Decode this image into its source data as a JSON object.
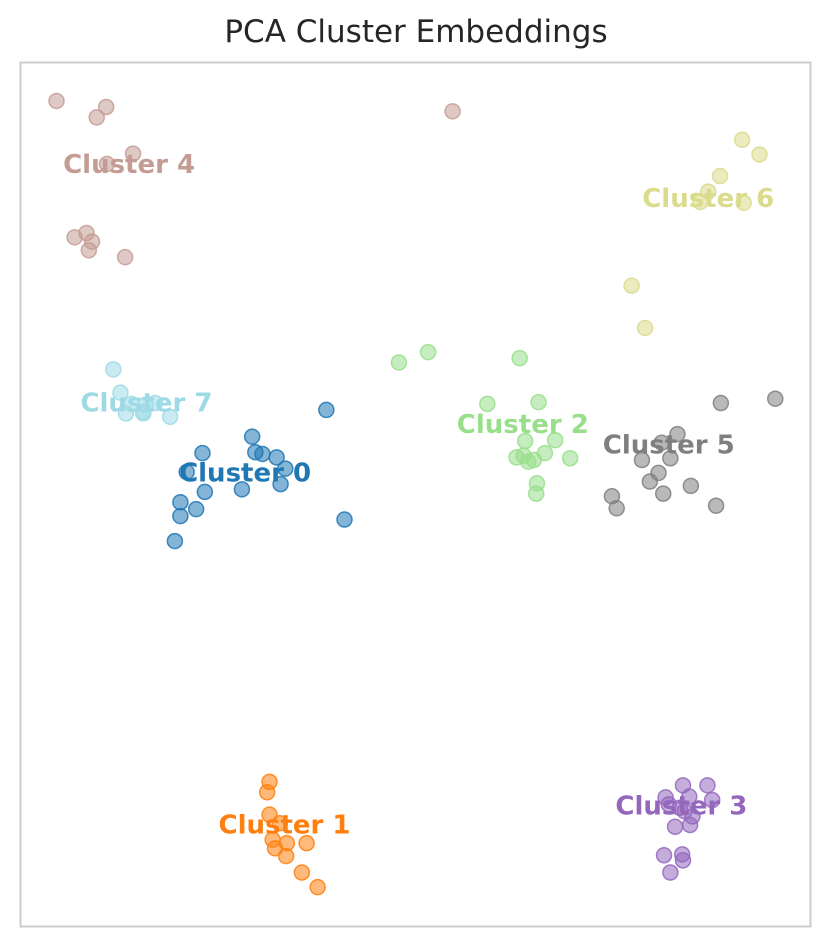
{
  "chart_data": {
    "type": "scatter",
    "title": "PCA Cluster Embeddings",
    "xlabel": "",
    "ylabel": "",
    "xlim": [
      0,
      100
    ],
    "ylim": [
      0,
      100
    ],
    "grid": false,
    "series": [
      {
        "name": "Cluster 0",
        "label": "Cluster 0",
        "label_pos": [
          28.4,
          52.4
        ],
        "color": "#1f77b4",
        "points": [
          [
            29.3,
            56.7
          ],
          [
            23.0,
            54.8
          ],
          [
            30.6,
            54.7
          ],
          [
            32.4,
            54.3
          ],
          [
            29.7,
            54.9
          ],
          [
            33.5,
            53.0
          ],
          [
            21.0,
            52.6
          ],
          [
            32.9,
            51.2
          ],
          [
            23.3,
            50.3
          ],
          [
            28.0,
            50.6
          ],
          [
            20.2,
            49.1
          ],
          [
            22.2,
            48.3
          ],
          [
            20.2,
            47.5
          ],
          [
            19.5,
            44.6
          ],
          [
            38.7,
            59.8
          ],
          [
            41.0,
            47.1
          ]
        ]
      },
      {
        "name": "Cluster 1",
        "label": "Cluster 1",
        "label_pos": [
          33.4,
          11.6
        ],
        "color": "#ff7f0e",
        "points": [
          [
            31.5,
            16.7
          ],
          [
            31.2,
            15.5
          ],
          [
            31.5,
            12.9
          ],
          [
            32.8,
            11.9
          ],
          [
            31.9,
            10.0
          ],
          [
            33.7,
            9.6
          ],
          [
            32.2,
            9.0
          ],
          [
            33.6,
            8.1
          ],
          [
            35.6,
            6.2
          ],
          [
            36.2,
            9.6
          ],
          [
            37.6,
            4.5
          ]
        ]
      },
      {
        "name": "Cluster 2",
        "label": "Cluster 2",
        "label_pos": [
          63.6,
          58.0
        ],
        "color": "#98df8a",
        "points": [
          [
            47.9,
            65.3
          ],
          [
            51.6,
            66.5
          ],
          [
            63.2,
            65.8
          ],
          [
            59.1,
            60.5
          ],
          [
            65.6,
            60.7
          ],
          [
            63.9,
            56.2
          ],
          [
            67.7,
            56.3
          ],
          [
            66.4,
            54.8
          ],
          [
            63.7,
            54.5
          ],
          [
            65.0,
            54.0
          ],
          [
            69.6,
            54.2
          ],
          [
            62.8,
            54.3
          ],
          [
            64.3,
            53.8
          ],
          [
            65.4,
            51.3
          ],
          [
            65.3,
            50.1
          ]
        ]
      },
      {
        "name": "Cluster 3",
        "label": "Cluster 3",
        "label_pos": [
          83.7,
          13.8
        ],
        "color": "#9467bd",
        "points": [
          [
            83.9,
            16.3
          ],
          [
            87.0,
            16.3
          ],
          [
            81.7,
            14.9
          ],
          [
            84.7,
            15.0
          ],
          [
            82.1,
            14.1
          ],
          [
            84.1,
            13.3
          ],
          [
            87.6,
            14.6
          ],
          [
            83.5,
            13.7
          ],
          [
            85.1,
            12.7
          ],
          [
            84.8,
            11.7
          ],
          [
            82.9,
            11.5
          ],
          [
            81.5,
            8.2
          ],
          [
            83.8,
            8.3
          ],
          [
            83.9,
            7.6
          ],
          [
            82.3,
            6.2
          ]
        ]
      },
      {
        "name": "Cluster 4",
        "label": "Cluster 4",
        "label_pos": [
          13.7,
          88.1
        ],
        "color": "#c49c94",
        "points": [
          [
            4.5,
            95.6
          ],
          [
            10.8,
            94.9
          ],
          [
            9.6,
            93.7
          ],
          [
            14.2,
            89.5
          ],
          [
            10.9,
            88.3
          ],
          [
            8.3,
            80.3
          ],
          [
            6.8,
            79.8
          ],
          [
            9.0,
            79.3
          ],
          [
            8.6,
            78.3
          ],
          [
            13.2,
            77.5
          ],
          [
            54.7,
            94.4
          ]
        ]
      },
      {
        "name": "Cluster 5",
        "label": "Cluster 5",
        "label_pos": [
          82.1,
          55.6
        ],
        "color": "#7f7f7f",
        "points": [
          [
            88.7,
            60.6
          ],
          [
            95.6,
            61.1
          ],
          [
            83.2,
            57.0
          ],
          [
            81.2,
            56.0
          ],
          [
            78.7,
            54.0
          ],
          [
            82.3,
            54.2
          ],
          [
            80.8,
            52.5
          ],
          [
            79.7,
            51.5
          ],
          [
            84.9,
            51.0
          ],
          [
            81.4,
            50.1
          ],
          [
            74.9,
            49.8
          ],
          [
            88.1,
            48.7
          ],
          [
            75.5,
            48.4
          ]
        ]
      },
      {
        "name": "Cluster 6",
        "label": "Cluster 6",
        "label_pos": [
          87.1,
          84.2
        ],
        "color": "#dbdb8d",
        "points": [
          [
            91.4,
            91.1
          ],
          [
            93.6,
            89.4
          ],
          [
            88.6,
            86.9
          ],
          [
            87.1,
            85.1
          ],
          [
            86.1,
            83.9
          ],
          [
            91.6,
            83.8
          ],
          [
            77.4,
            74.2
          ],
          [
            79.1,
            69.3
          ]
        ]
      },
      {
        "name": "Cluster 7",
        "label": "Cluster 7",
        "label_pos": [
          15.9,
          60.5
        ],
        "color": "#9edae5",
        "points": [
          [
            11.7,
            64.5
          ],
          [
            12.6,
            61.8
          ],
          [
            14.0,
            60.5
          ],
          [
            17.0,
            60.6
          ],
          [
            13.3,
            59.4
          ],
          [
            18.9,
            59.0
          ],
          [
            15.5,
            59.4
          ],
          [
            15.5,
            59.6
          ],
          [
            15.8,
            60.4
          ]
        ]
      }
    ]
  }
}
